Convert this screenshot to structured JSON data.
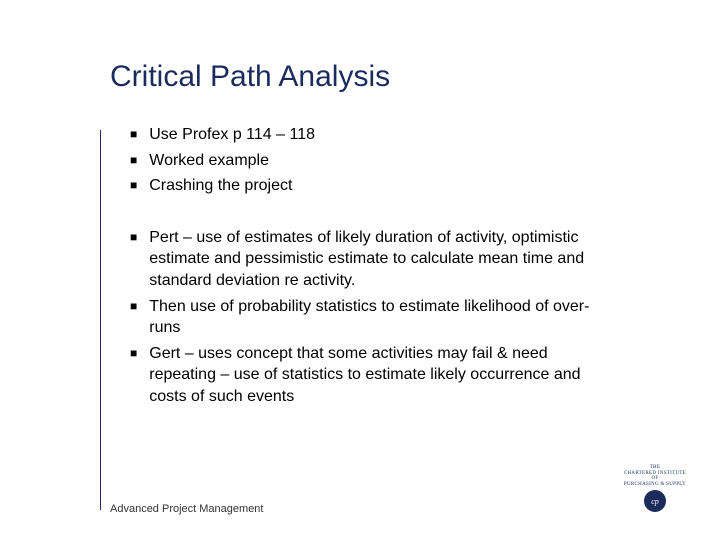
{
  "title": "Critical Path Analysis",
  "group1": [
    "Use Profex p 114 – 118",
    "Worked example",
    "Crashing the project"
  ],
  "group2": [
    "Pert – use of estimates of likely duration of activity, optimistic estimate and pessimistic estimate to calculate mean time and standard deviation re activity.",
    "Then use of probability statistics to estimate likelihood of over-runs",
    "Gert – uses concept that some activities may fail & need repeating – use of statistics to estimate likely occurrence and costs of such events"
  ],
  "footer": "Advanced Project Management",
  "logo": {
    "line1": "THE",
    "line2": "CHARTERED INSTITUTE OF",
    "line3": "PURCHASING & SUPPLY",
    "badge": "cp"
  },
  "colors": {
    "title": "#1a2b5c",
    "text": "#000000",
    "background": "#ffffff"
  }
}
